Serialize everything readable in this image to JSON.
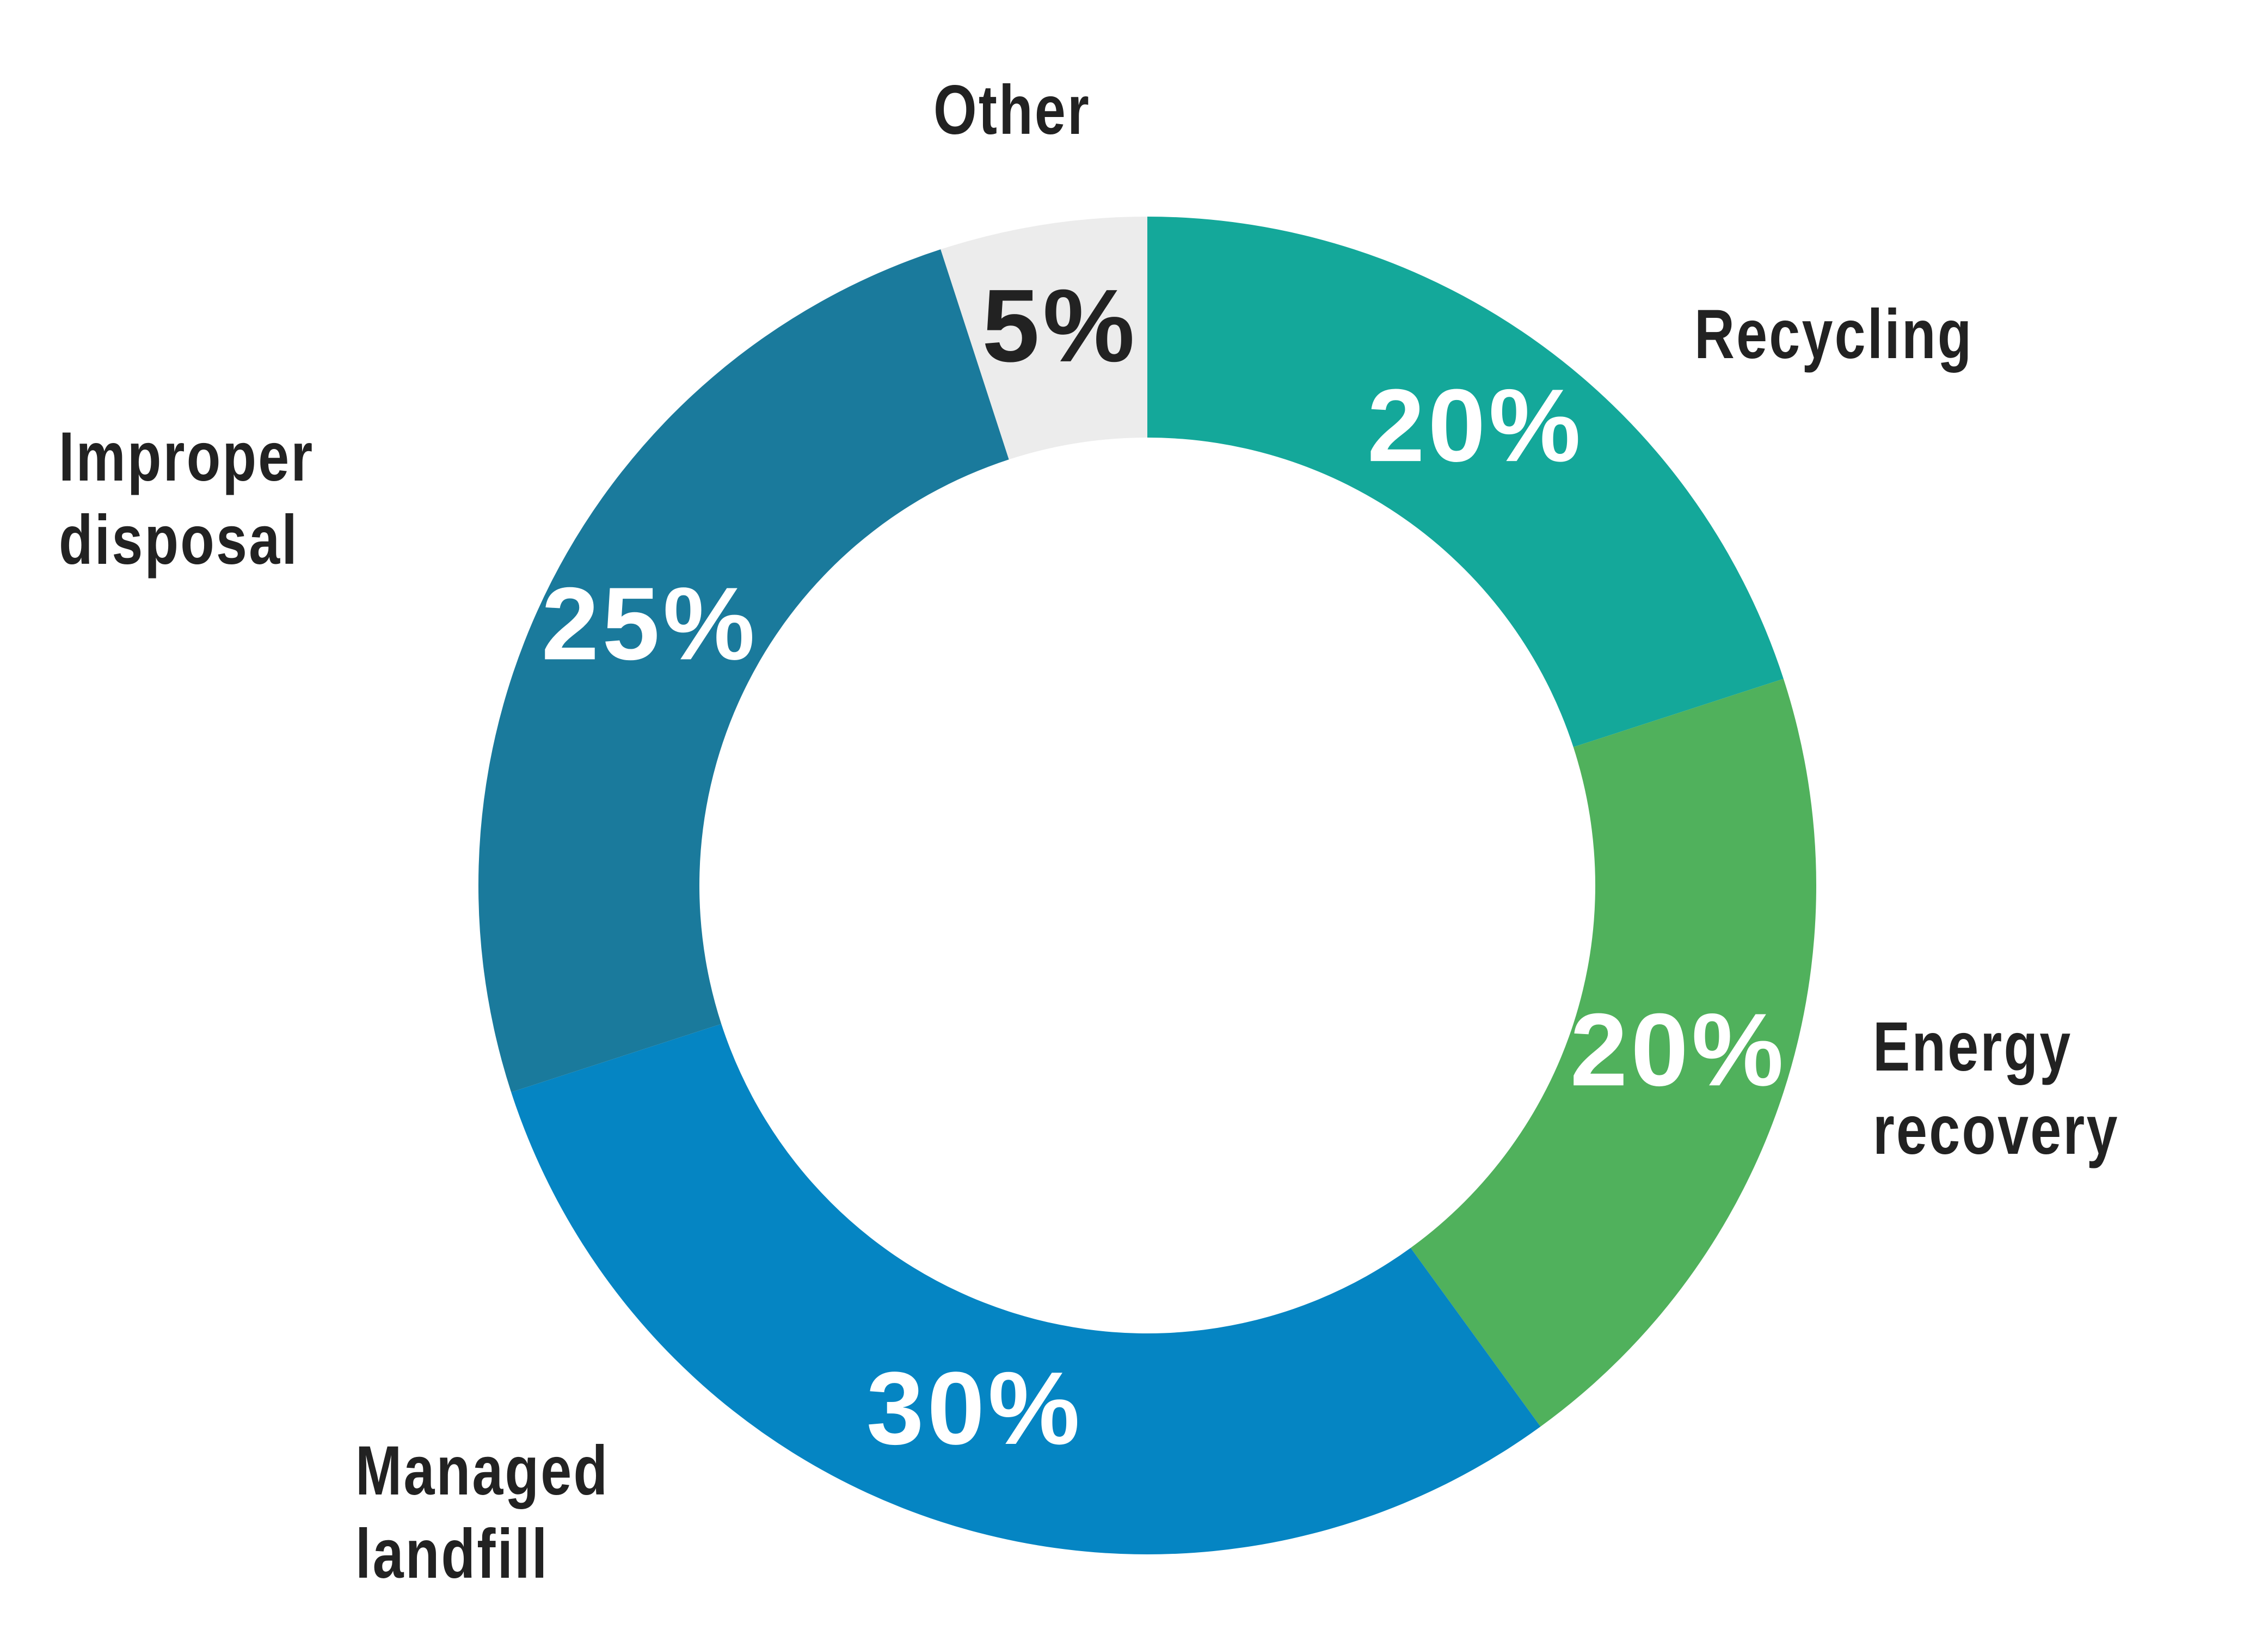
{
  "chart_data": {
    "type": "donut",
    "categories": [
      "Recycling",
      "Energy recovery",
      "Managed landfill",
      "Improper disposal",
      "Other"
    ],
    "values": [
      20,
      20,
      30,
      25,
      5
    ],
    "value_labels": [
      "20%",
      "20%",
      "30%",
      "25%",
      "5%"
    ],
    "colors": [
      "#14a89a",
      "#50b15c",
      "#0585c3",
      "#1a7a9c",
      "#ececec"
    ],
    "label_colors": [
      "#ffffff",
      "#ffffff",
      "#ffffff",
      "#ffffff",
      "#222222"
    ]
  }
}
